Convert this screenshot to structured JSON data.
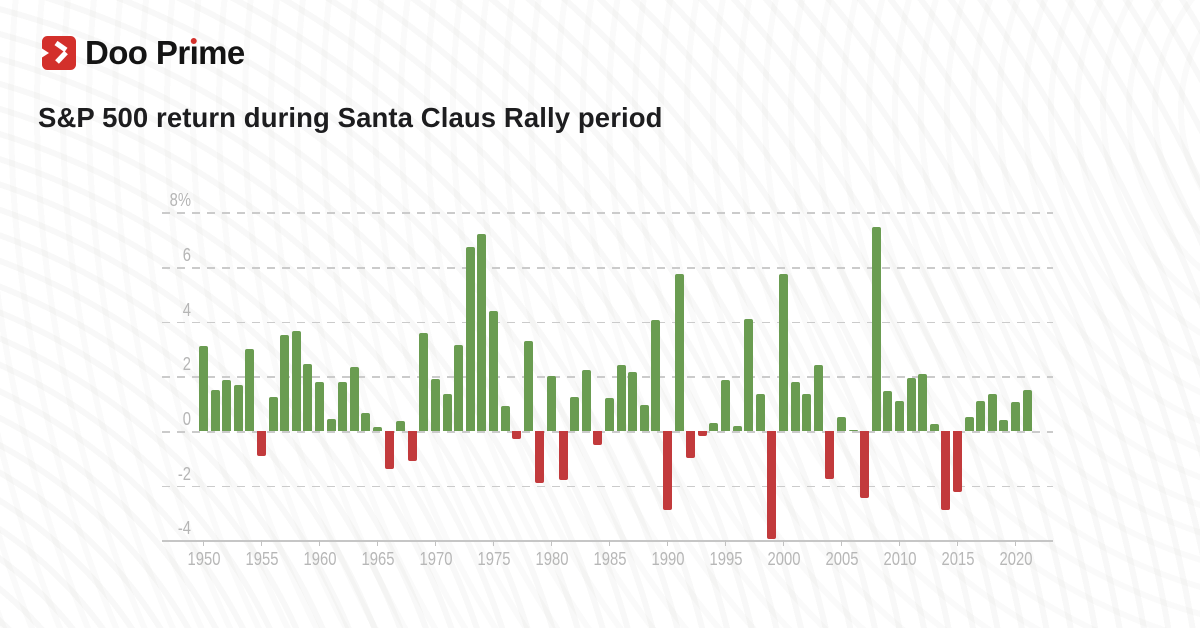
{
  "header": {
    "brand": {
      "full": "Doo Prime",
      "prefix": "Doo Pr",
      "i_char": "ı",
      "suffix": "me"
    },
    "title": "S&P 500 return during Santa Claus Rally period"
  },
  "icons": {
    "logo_mark": "doo-prime-flag-icon"
  },
  "colors": {
    "positive_bar": "#6A9C51",
    "negative_bar": "#C23A3C",
    "brand_red": "#D3302B",
    "grid": "#CBCBCB",
    "axis_text": "#B5B5B5",
    "title_text": "#1D1D1F"
  },
  "chart_data": {
    "type": "bar",
    "title": "S&P 500 return during Santa Claus Rally period",
    "xlabel": "",
    "ylabel": "",
    "unit": "%",
    "grid": "horizontal-dashed",
    "legend": "none",
    "ylim": [
      -4.3,
      8.6
    ],
    "years": [
      1950,
      1951,
      1952,
      1953,
      1954,
      1955,
      1956,
      1957,
      1958,
      1959,
      1960,
      1961,
      1962,
      1963,
      1964,
      1965,
      1966,
      1967,
      1968,
      1969,
      1970,
      1971,
      1972,
      1973,
      1974,
      1975,
      1976,
      1977,
      1978,
      1979,
      1980,
      1981,
      1982,
      1983,
      1984,
      1985,
      1986,
      1987,
      1988,
      1989,
      1990,
      1991,
      1992,
      1993,
      1994,
      1995,
      1996,
      1997,
      1998,
      1999,
      2000,
      2001,
      2002,
      2003,
      2004,
      2005,
      2006,
      2007,
      2008,
      2009,
      2010,
      2011,
      2012,
      2013,
      2014,
      2015,
      2016,
      2017,
      2018,
      2019,
      2020,
      2021
    ],
    "values": [
      3.1,
      1.5,
      1.85,
      1.7,
      3.0,
      -0.9,
      1.25,
      3.5,
      3.65,
      2.45,
      1.8,
      0.45,
      1.8,
      2.35,
      0.65,
      0.15,
      -1.4,
      0.35,
      -1.1,
      3.6,
      1.9,
      1.35,
      3.15,
      6.75,
      7.2,
      4.4,
      0.9,
      -0.3,
      3.3,
      -1.9,
      2.0,
      -1.8,
      1.25,
      2.25,
      -0.5,
      1.2,
      2.4,
      2.15,
      0.95,
      4.05,
      -2.9,
      5.75,
      -1.0,
      -0.2,
      0.3,
      1.85,
      0.2,
      4.1,
      1.35,
      -3.95,
      5.75,
      1.8,
      1.35,
      2.4,
      -1.75,
      0.5,
      0.05,
      -2.45,
      7.45,
      1.45,
      1.1,
      1.95,
      2.1,
      0.25,
      -2.9,
      -2.25,
      0.5,
      1.1,
      1.35,
      0.4,
      1.05,
      1.5
    ],
    "x_tick_labels": [
      "1950",
      "1955",
      "1960",
      "1965",
      "1970",
      "1975",
      "1980",
      "1985",
      "1990",
      "1995",
      "2000",
      "2005",
      "2010",
      "2015",
      "2020"
    ],
    "y_ticks": [
      {
        "value": 8,
        "label": "8%"
      },
      {
        "value": 6,
        "label": "6"
      },
      {
        "value": 4,
        "label": "4"
      },
      {
        "value": 2,
        "label": "2"
      },
      {
        "value": 0,
        "label": "0"
      },
      {
        "value": -2,
        "label": "-2"
      },
      {
        "value": -4,
        "label": "-4"
      }
    ],
    "bar_colors": {
      "positive": "#6A9C51",
      "negative": "#C23A3C"
    }
  }
}
